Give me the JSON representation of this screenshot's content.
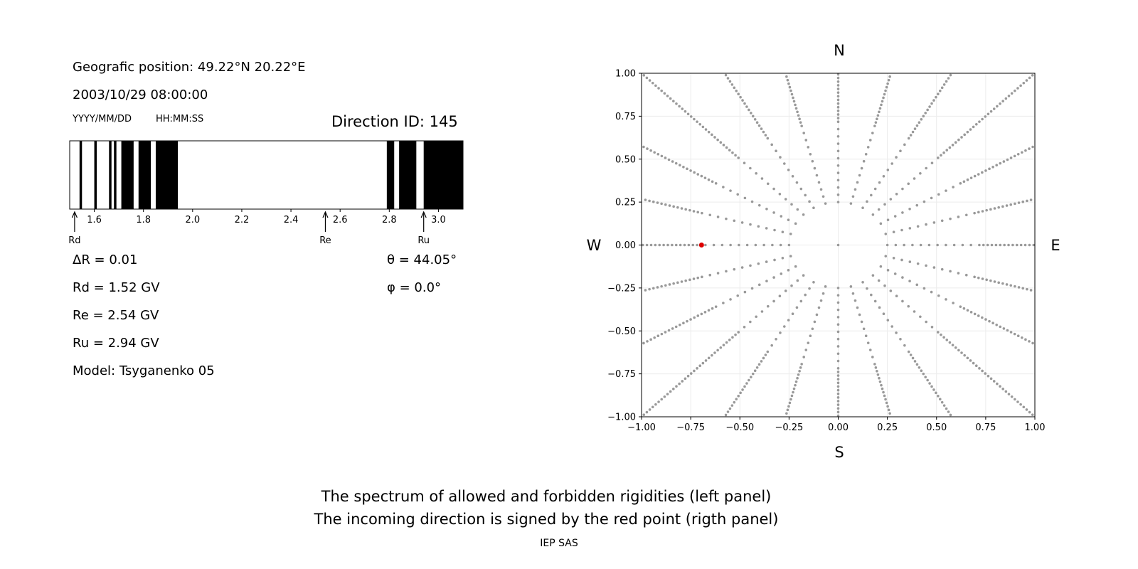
{
  "left_panel": {
    "geo_position": "Geografic position: 49.22°N 20.22°E",
    "datetime": "2003/10/29 08:00:00",
    "date_format": "YYYY/MM/DD",
    "time_format": "HH:MM:SS",
    "direction_id": "Direction ID: 145",
    "params": {
      "delta_r": "ΔR = 0.01",
      "rd": "Rd = 1.52 GV",
      "re": "Re = 2.54 GV",
      "ru": "Ru = 2.94 GV",
      "model": "Model: Tsyganenko 05",
      "theta": "θ = 44.05°",
      "phi": "φ = 0.0°"
    }
  },
  "chart_data": [
    {
      "type": "bar",
      "xlim": [
        1.5,
        3.1
      ],
      "xticks": [
        "1.6",
        "1.8",
        "2.0",
        "2.2",
        "2.4",
        "2.6",
        "2.8",
        "3.0"
      ],
      "forbidden_intervals": [
        [
          1.54,
          1.55
        ],
        [
          1.6,
          1.61
        ],
        [
          1.66,
          1.67
        ],
        [
          1.68,
          1.69
        ],
        [
          1.71,
          1.76
        ],
        [
          1.78,
          1.83
        ],
        [
          1.85,
          1.94
        ],
        [
          2.79,
          2.82
        ],
        [
          2.84,
          2.91
        ],
        [
          2.94,
          3.1
        ]
      ],
      "markers": [
        {
          "label": "Rd",
          "value": 1.52
        },
        {
          "label": "Re",
          "value": 2.54
        },
        {
          "label": "Ru",
          "value": 2.94
        }
      ]
    },
    {
      "type": "scatter",
      "xlim": [
        -1.0,
        1.0
      ],
      "ylim": [
        -1.0,
        1.0
      ],
      "xticks": [
        "−1.00",
        "−0.75",
        "−0.50",
        "−0.25",
        "0.00",
        "0.25",
        "0.50",
        "0.75",
        "1.00"
      ],
      "yticks": [
        "−1.00",
        "−0.75",
        "−0.50",
        "−0.25",
        "0.00",
        "0.25",
        "0.50",
        "0.75",
        "1.00"
      ],
      "grid": true,
      "compass": {
        "north": "N",
        "south": "S",
        "east": "E",
        "west": "W"
      },
      "spoke_count": 24,
      "spoke_start_radius": 0.25,
      "spoke_step": 0.0425,
      "inner_circle_radius": 0.25,
      "inner_circle_points": 24,
      "grid_point_color": "#999999",
      "selected_point": {
        "x": -0.695,
        "y": 0.0,
        "color": "#dd0000"
      }
    }
  ],
  "caption": {
    "line1": "The spectrum of allowed and forbidden rigidities (left panel)",
    "line2": "The incoming direction is signed by the red point (rigth panel)"
  },
  "footer": "IEP SAS"
}
